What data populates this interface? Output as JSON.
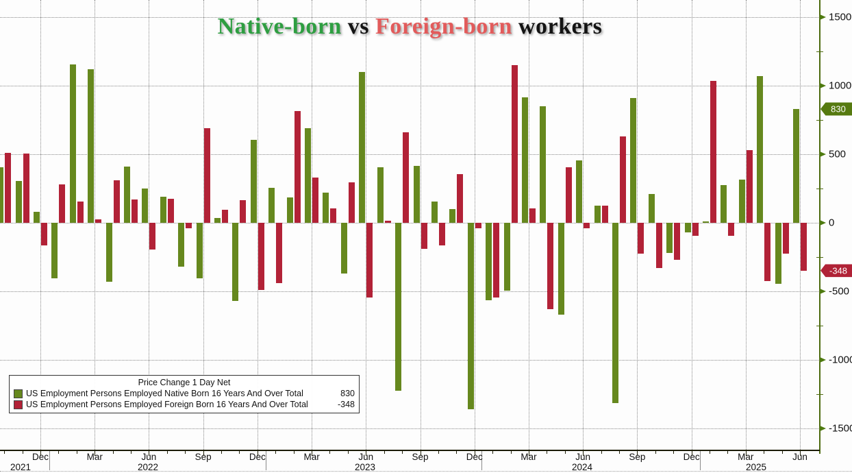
{
  "title": {
    "parts": [
      {
        "text": "Native-born",
        "color": "#2e9e41"
      },
      {
        "text": " vs ",
        "color": "#141414"
      },
      {
        "text": "Foreign-born",
        "color": "#e25b5b"
      },
      {
        "text": " workers",
        "color": "#141414"
      }
    ]
  },
  "legend": {
    "title": "Price Change 1 Day Net",
    "items": [
      {
        "label": "US Employment Persons Employed Native Born 16 Years And Over Total",
        "value": "830",
        "color": "#66881e"
      },
      {
        "label": "US Employment Persons Employed Foreign Born 16 Years And Over Total",
        "value": "-348",
        "color": "#b22237"
      }
    ]
  },
  "y_axis": {
    "major_ticks": [
      1500,
      1000,
      500,
      0,
      -500,
      -1000,
      -1500
    ],
    "minor_ticks": [
      1250,
      750,
      250,
      -250,
      -750,
      -1250
    ],
    "range": [
      -1500,
      1500
    ],
    "badges": [
      {
        "value": "830",
        "color": "#567a10",
        "at": 830
      },
      {
        "value": "-348",
        "color": "#b02236",
        "at": -348
      }
    ]
  },
  "x_axis": {
    "quarter_labels": [
      "Dec",
      "Mar",
      "Jun",
      "Sep",
      "Dec",
      "Mar",
      "Jun",
      "Sep",
      "Dec",
      "Mar",
      "Jun",
      "Sep",
      "Dec",
      "Mar",
      "Jun"
    ],
    "year_labels": [
      "2021",
      "2022",
      "2023",
      "2024",
      "2025"
    ]
  },
  "chart_data": {
    "type": "bar",
    "title": "Native-born vs Foreign-born workers",
    "legend_title": "Price Change 1 Day Net",
    "x": [
      "2021-10",
      "2021-11",
      "2021-12",
      "2022-01",
      "2022-02",
      "2022-03",
      "2022-04",
      "2022-05",
      "2022-06",
      "2022-07",
      "2022-08",
      "2022-09",
      "2022-10",
      "2022-11",
      "2022-12",
      "2023-01",
      "2023-02",
      "2023-03",
      "2023-04",
      "2023-05",
      "2023-06",
      "2023-07",
      "2023-08",
      "2023-09",
      "2023-10",
      "2023-11",
      "2023-12",
      "2024-01",
      "2024-02",
      "2024-03",
      "2024-04",
      "2024-05",
      "2024-06",
      "2024-07",
      "2024-08",
      "2024-09",
      "2024-10",
      "2024-11",
      "2024-12",
      "2025-01",
      "2025-02",
      "2025-03",
      "2025-04",
      "2025-05",
      "2025-06"
    ],
    "series": [
      {
        "name": "US Employment Persons Employed Native Born 16 Years And Over Total",
        "color": "#66881e",
        "last_value": 830,
        "values": [
          405,
          305,
          80,
          -405,
          1155,
          1120,
          -430,
          410,
          250,
          190,
          -320,
          -405,
          35,
          -570,
          605,
          255,
          185,
          690,
          220,
          -370,
          1100,
          405,
          -1225,
          415,
          155,
          100,
          -1360,
          -565,
          -495,
          915,
          850,
          -670,
          455,
          125,
          -1315,
          910,
          210,
          -220,
          -70,
          10,
          275,
          315,
          1070,
          -445,
          830
        ]
      },
      {
        "name": "US Employment Persons Employed Foreign Born 16 Years And Over Total",
        "color": "#b22237",
        "last_value": -348,
        "values": [
          510,
          505,
          -165,
          280,
          155,
          25,
          310,
          170,
          -195,
          175,
          -40,
          690,
          95,
          165,
          -490,
          -440,
          815,
          330,
          105,
          295,
          -545,
          15,
          660,
          -190,
          -165,
          355,
          -40,
          -545,
          1150,
          105,
          -630,
          405,
          -40,
          125,
          630,
          -225,
          -330,
          -270,
          -95,
          1035,
          -95,
          530,
          -425,
          -225,
          -348
        ]
      }
    ],
    "ylim": [
      -1500,
      1500
    ],
    "grid": "dotted",
    "legend_position": "bottom-left"
  }
}
